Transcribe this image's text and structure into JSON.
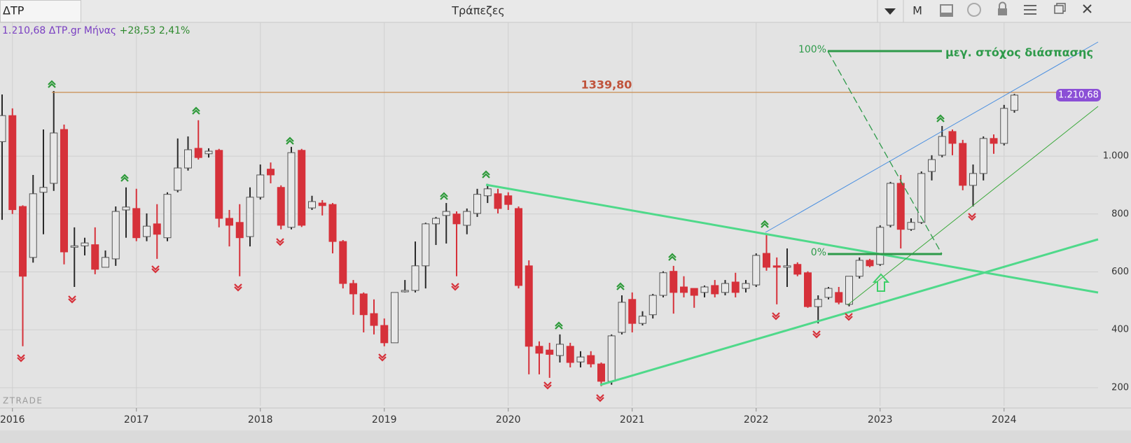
{
  "header": {
    "symbol": "ΔΤΡ",
    "title": "Τράπεζες",
    "period_button": "M"
  },
  "info": {
    "price": "1.210,68",
    "symbol": "ΔΤΡ.gr",
    "period": "Μήνας",
    "change": "+28,53",
    "change_percent": "2,41%"
  },
  "watermark": "ZTRADE",
  "chart_data": {
    "type": "candlestick",
    "up_color": "#e8e8e8",
    "down_color": "#d6313a",
    "categories": [
      null,
      "2016",
      null,
      null,
      null,
      null,
      null,
      null,
      null,
      null,
      null,
      null,
      null,
      "2017",
      null,
      null,
      null,
      null,
      null,
      null,
      null,
      null,
      null,
      null,
      null,
      "2018",
      null,
      null,
      null,
      null,
      null,
      null,
      null,
      null,
      null,
      null,
      null,
      "2019",
      null,
      null,
      null,
      null,
      null,
      null,
      null,
      null,
      null,
      null,
      null,
      "2020",
      null,
      null,
      null,
      null,
      null,
      null,
      null,
      null,
      null,
      null,
      null,
      "2021",
      null,
      null,
      null,
      null,
      null,
      null,
      null,
      null,
      null,
      null,
      null,
      "2022",
      null,
      null,
      null,
      null,
      null,
      null,
      null,
      null,
      null,
      null,
      null,
      "2023",
      null,
      null,
      null,
      null,
      null,
      null,
      null,
      null,
      null,
      null,
      null,
      "2024",
      null
    ],
    "open": [
      1050,
      1140,
      826,
      650,
      875,
      906,
      1092,
      688,
      690,
      694,
      616,
      645,
      814,
      819,
      722,
      766,
      718,
      882,
      959,
      1027,
      1008,
      1020,
      785,
      771,
      722,
      858,
      955,
      892,
      754,
      1020,
      821,
      838,
      833,
      705,
      560,
      524,
      456,
      415,
      355,
      533,
      536,
      621,
      766,
      795,
      800,
      761,
      802,
      863,
      870,
      863,
      819,
      621,
      343,
      330,
      311,
      343,
      289,
      311,
      282,
      222,
      391,
      505,
      422,
      452,
      519,
      602,
      548,
      543,
      529,
      553,
      529,
      565,
      543,
      555,
      664,
      621,
      616,
      626,
      597,
      480,
      512,
      529,
      488,
      585,
      640,
      626,
      761,
      906,
      747,
      771,
      947,
      1003,
      1085,
      1044,
      899,
      940,
      1061,
      1044,
      1158
    ],
    "high": [
      1213,
      1165,
      830,
      935,
      1092,
      1225,
      1109,
      754,
      718,
      754,
      674,
      826,
      892,
      887,
      802,
      834,
      875,
      1061,
      1068,
      1124,
      1027,
      1025,
      814,
      834,
      892,
      971,
      978,
      899,
      1032,
      1025,
      863,
      848,
      838,
      710,
      572,
      529,
      505,
      439,
      529,
      572,
      705,
      770,
      790,
      838,
      809,
      819,
      887,
      904,
      887,
      875,
      826,
      640,
      360,
      355,
      384,
      355,
      326,
      326,
      287,
      384,
      519,
      529,
      464,
      524,
      602,
      621,
      585,
      543,
      553,
      572,
      572,
      597,
      572,
      664,
      730,
      650,
      681,
      633,
      602,
      519,
      548,
      548,
      585,
      650,
      645,
      761,
      911,
      935,
      785,
      947,
      1003,
      1104,
      1092,
      1056,
      971,
      1068,
      1075,
      1177,
      1215
    ],
    "low": [
      780,
      800,
      343,
      632,
      730,
      880,
      626,
      548,
      657,
      592,
      616,
      621,
      718,
      706,
      706,
      645,
      706,
      875,
      950,
      988,
      995,
      754,
      688,
      585,
      688,
      850,
      906,
      747,
      747,
      755,
      814,
      795,
      664,
      543,
      452,
      391,
      384,
      343,
      355,
      529,
      529,
      543,
      693,
      698,
      585,
      730,
      790,
      838,
      802,
      814,
      543,
      246,
      246,
      234,
      287,
      270,
      270,
      270,
      205,
      210,
      384,
      391,
      415,
      439,
      512,
      456,
      512,
      476,
      512,
      512,
      519,
      512,
      529,
      548,
      604,
      488,
      548,
      585,
      476,
      422,
      505,
      488,
      481,
      577,
      616,
      621,
      754,
      681,
      742,
      766,
      916,
      996,
      1003,
      882,
      826,
      916,
      1008,
      1037,
      1150
    ],
    "close": [
      1140,
      815,
      585,
      870,
      892,
      1080,
      669,
      690,
      700,
      609,
      650,
      809,
      824,
      718,
      758,
      730,
      868,
      959,
      1022,
      995,
      1017,
      785,
      761,
      718,
      858,
      935,
      935,
      761,
      1012,
      761,
      843,
      829,
      705,
      560,
      524,
      452,
      415,
      355,
      529,
      536,
      621,
      766,
      785,
      809,
      766,
      809,
      868,
      887,
      819,
      833,
      553,
      343,
      319,
      315,
      350,
      287,
      306,
      282,
      222,
      379,
      495,
      422,
      447,
      519,
      597,
      529,
      529,
      519,
      548,
      524,
      560,
      529,
      560,
      657,
      616,
      616,
      621,
      592,
      480,
      505,
      543,
      495,
      585,
      640,
      621,
      754,
      906,
      747,
      771,
      940,
      988,
      1068,
      1044,
      899,
      940,
      1061,
      1044,
      1165,
      1210.68
    ],
    "ylim": [
      137,
      1462
    ],
    "yticks": [
      200,
      400,
      600,
      800,
      {
        "value": 1000,
        "label": "1.000"
      }
    ],
    "grid": true,
    "last_price_label": "1.210,68",
    "resistance_label": "1339,80",
    "fib_high_label": "100%",
    "fib_low_label": "0%",
    "target_label": "μεγ. στόχος διάσπασης"
  }
}
